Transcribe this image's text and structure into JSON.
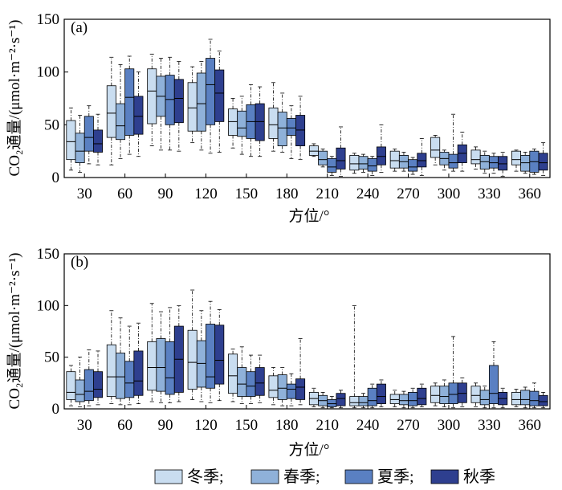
{
  "chart_data": [
    {
      "type": "boxplot",
      "panel_label": "(a)",
      "xlabel": "方位/°",
      "ylabel": "CO₂通量/(μmol·m⁻²·s⁻¹)",
      "ylim": [
        0,
        150
      ],
      "yticks": [
        0,
        50,
        100,
        150
      ],
      "categories": [
        "30",
        "60",
        "90",
        "120",
        "150",
        "180",
        "210",
        "240",
        "270",
        "300",
        "330",
        "360"
      ],
      "series": [
        {
          "name": "冬季",
          "color": "#c9ddf0",
          "boxes": [
            {
              "min": 7,
              "q1": 17,
              "median": 34,
              "q3": 54,
              "max": 66
            },
            {
              "min": 12,
              "q1": 38,
              "median": 61,
              "q3": 87,
              "max": 114
            },
            {
              "min": 30,
              "q1": 51,
              "median": 82,
              "q3": 103,
              "max": 117
            },
            {
              "min": 33,
              "q1": 44,
              "median": 66,
              "q3": 90,
              "max": 105
            },
            {
              "min": 28,
              "q1": 40,
              "median": 53,
              "q3": 65,
              "max": 75
            },
            {
              "min": 25,
              "q1": 37,
              "median": 50,
              "q3": 66,
              "max": 90
            },
            {
              "min": 20,
              "q1": 21,
              "median": 25,
              "q3": 30,
              "max": 32
            },
            {
              "min": 4,
              "q1": 7,
              "median": 13,
              "q3": 21,
              "max": 23
            },
            {
              "min": 6,
              "q1": 9,
              "median": 16,
              "q3": 25,
              "max": 27
            },
            {
              "min": 12,
              "q1": 19,
              "median": 26,
              "q3": 38,
              "max": 40
            },
            {
              "min": 8,
              "q1": 13,
              "median": 17,
              "q3": 26,
              "max": 29
            },
            {
              "min": 6,
              "q1": 12,
              "median": 17,
              "q3": 25,
              "max": 26
            }
          ]
        },
        {
          "name": "春季",
          "color": "#8fb1d9",
          "boxes": [
            {
              "min": 5,
              "q1": 14,
              "median": 25,
              "q3": 42,
              "max": 59
            },
            {
              "min": 18,
              "q1": 36,
              "median": 49,
              "q3": 70,
              "max": 107
            },
            {
              "min": 26,
              "q1": 58,
              "median": 77,
              "q3": 96,
              "max": 113
            },
            {
              "min": 26,
              "q1": 44,
              "median": 70,
              "q3": 99,
              "max": 110
            },
            {
              "min": 22,
              "q1": 39,
              "median": 47,
              "q3": 63,
              "max": 77
            },
            {
              "min": 24,
              "q1": 30,
              "median": 47,
              "q3": 62,
              "max": 80
            },
            {
              "min": 10,
              "q1": 12,
              "median": 17,
              "q3": 25,
              "max": 27
            },
            {
              "min": 5,
              "q1": 8,
              "median": 13,
              "q3": 20,
              "max": 22
            },
            {
              "min": 6,
              "q1": 9,
              "median": 15,
              "q3": 21,
              "max": 24
            },
            {
              "min": 7,
              "q1": 12,
              "median": 18,
              "q3": 24,
              "max": 26
            },
            {
              "min": 4,
              "q1": 8,
              "median": 15,
              "q3": 21,
              "max": 25
            },
            {
              "min": 4,
              "q1": 6,
              "median": 14,
              "q3": 21,
              "max": 24
            }
          ]
        },
        {
          "name": "夏季",
          "color": "#5a80c2",
          "boxes": [
            {
              "min": 13,
              "q1": 25,
              "median": 38,
              "q3": 58,
              "max": 68
            },
            {
              "min": 22,
              "q1": 40,
              "median": 76,
              "q3": 103,
              "max": 115
            },
            {
              "min": 26,
              "q1": 50,
              "median": 74,
              "q3": 97,
              "max": 114
            },
            {
              "min": 23,
              "q1": 50,
              "median": 88,
              "q3": 113,
              "max": 131
            },
            {
              "min": 20,
              "q1": 37,
              "median": 53,
              "q3": 69,
              "max": 88
            },
            {
              "min": 18,
              "q1": 40,
              "median": 47,
              "q3": 56,
              "max": 68
            },
            {
              "min": 2,
              "q1": 5,
              "median": 10,
              "q3": 18,
              "max": 20
            },
            {
              "min": 2,
              "q1": 6,
              "median": 11,
              "q3": 18,
              "max": 20
            },
            {
              "min": 3,
              "q1": 6,
              "median": 10,
              "q3": 17,
              "max": 19
            },
            {
              "min": 6,
              "q1": 9,
              "median": 14,
              "q3": 22,
              "max": 60
            },
            {
              "min": 4,
              "q1": 9,
              "median": 14,
              "q3": 20,
              "max": 23
            },
            {
              "min": 3,
              "q1": 5,
              "median": 15,
              "q3": 25,
              "max": 27
            }
          ]
        },
        {
          "name": "秋季",
          "color": "#2e3f8f",
          "boxes": [
            {
              "min": 12,
              "q1": 24,
              "median": 32,
              "q3": 45,
              "max": 60
            },
            {
              "min": 20,
              "q1": 41,
              "median": 58,
              "q3": 77,
              "max": 100
            },
            {
              "min": 25,
              "q1": 52,
              "median": 75,
              "q3": 93,
              "max": 110
            },
            {
              "min": 24,
              "q1": 53,
              "median": 80,
              "q3": 102,
              "max": 120
            },
            {
              "min": 20,
              "q1": 35,
              "median": 53,
              "q3": 70,
              "max": 86
            },
            {
              "min": 17,
              "q1": 30,
              "median": 45,
              "q3": 59,
              "max": 77
            },
            {
              "min": 1,
              "q1": 8,
              "median": 16,
              "q3": 28,
              "max": 48
            },
            {
              "min": 5,
              "q1": 12,
              "median": 20,
              "q3": 29,
              "max": 50
            },
            {
              "min": 2,
              "q1": 10,
              "median": 16,
              "q3": 23,
              "max": 37
            },
            {
              "min": 6,
              "q1": 14,
              "median": 23,
              "q3": 31,
              "max": 43
            },
            {
              "min": 1,
              "q1": 7,
              "median": 13,
              "q3": 20,
              "max": 24
            },
            {
              "min": 2,
              "q1": 7,
              "median": 14,
              "q3": 23,
              "max": 33
            }
          ]
        }
      ]
    },
    {
      "type": "boxplot",
      "panel_label": "(b)",
      "xlabel": "方位/°",
      "ylabel": "CO₂通量/(μmol·m⁻²·s⁻¹)",
      "ylim": [
        0,
        150
      ],
      "yticks": [
        0,
        50,
        100,
        150
      ],
      "categories": [
        "30",
        "60",
        "90",
        "120",
        "150",
        "180",
        "210",
        "240",
        "270",
        "300",
        "330",
        "360"
      ],
      "series": [
        {
          "name": "冬季",
          "color": "#c9ddf0",
          "boxes": [
            {
              "min": 3,
              "q1": 9,
              "median": 16,
              "q3": 36,
              "max": 42
            },
            {
              "min": 5,
              "q1": 12,
              "median": 31,
              "q3": 62,
              "max": 95
            },
            {
              "min": 7,
              "q1": 18,
              "median": 40,
              "q3": 65,
              "max": 102
            },
            {
              "min": 9,
              "q1": 19,
              "median": 45,
              "q3": 76,
              "max": 115
            },
            {
              "min": 7,
              "q1": 15,
              "median": 32,
              "q3": 53,
              "max": 58
            },
            {
              "min": 4,
              "q1": 11,
              "median": 18,
              "q3": 32,
              "max": 40
            },
            {
              "min": 2,
              "q1": 4,
              "median": 10,
              "q3": 16,
              "max": 20
            },
            {
              "min": 1,
              "q1": 3,
              "median": 6,
              "q3": 12,
              "max": 100
            },
            {
              "min": 2,
              "q1": 5,
              "median": 9,
              "q3": 14,
              "max": 18
            },
            {
              "min": 3,
              "q1": 6,
              "median": 13,
              "q3": 22,
              "max": 25
            },
            {
              "min": 2,
              "q1": 6,
              "median": 13,
              "q3": 22,
              "max": 25
            },
            {
              "min": 2,
              "q1": 4,
              "median": 9,
              "q3": 16,
              "max": 19
            }
          ]
        },
        {
          "name": "春季",
          "color": "#8fb1d9",
          "boxes": [
            {
              "min": 2,
              "q1": 7,
              "median": 14,
              "q3": 28,
              "max": 50
            },
            {
              "min": 4,
              "q1": 10,
              "median": 31,
              "q3": 54,
              "max": 88
            },
            {
              "min": 6,
              "q1": 17,
              "median": 40,
              "q3": 68,
              "max": 94
            },
            {
              "min": 7,
              "q1": 21,
              "median": 44,
              "q3": 66,
              "max": 95
            },
            {
              "min": 5,
              "q1": 12,
              "median": 24,
              "q3": 40,
              "max": 60
            },
            {
              "min": 3,
              "q1": 9,
              "median": 20,
              "q3": 33,
              "max": 40
            },
            {
              "min": 1,
              "q1": 3,
              "median": 8,
              "q3": 13,
              "max": 16
            },
            {
              "min": 1,
              "q1": 3,
              "median": 6,
              "q3": 12,
              "max": 15
            },
            {
              "min": 1,
              "q1": 4,
              "median": 8,
              "q3": 14,
              "max": 17
            },
            {
              "min": 2,
              "q1": 5,
              "median": 12,
              "q3": 22,
              "max": 28
            },
            {
              "min": 1,
              "q1": 4,
              "median": 9,
              "q3": 18,
              "max": 22
            },
            {
              "min": 1,
              "q1": 4,
              "median": 9,
              "q3": 18,
              "max": 21
            }
          ]
        },
        {
          "name": "夏季",
          "color": "#5a80c2",
          "boxes": [
            {
              "min": 3,
              "q1": 8,
              "median": 17,
              "q3": 38,
              "max": 57
            },
            {
              "min": 4,
              "q1": 11,
              "median": 25,
              "q3": 46,
              "max": 80
            },
            {
              "min": 6,
              "q1": 14,
              "median": 30,
              "q3": 65,
              "max": 98
            },
            {
              "min": 6,
              "q1": 20,
              "median": 31,
              "q3": 82,
              "max": 104
            },
            {
              "min": 5,
              "q1": 12,
              "median": 22,
              "q3": 36,
              "max": 52
            },
            {
              "min": 3,
              "q1": 10,
              "median": 19,
              "q3": 24,
              "max": 34
            },
            {
              "min": 1,
              "q1": 2,
              "median": 5,
              "q3": 9,
              "max": 12
            },
            {
              "min": 1,
              "q1": 3,
              "median": 8,
              "q3": 20,
              "max": 24
            },
            {
              "min": 1,
              "q1": 3,
              "median": 8,
              "q3": 16,
              "max": 20
            },
            {
              "min": 1,
              "q1": 5,
              "median": 14,
              "q3": 25,
              "max": 70
            },
            {
              "min": 1,
              "q1": 5,
              "median": 15,
              "q3": 42,
              "max": 65
            },
            {
              "min": 1,
              "q1": 3,
              "median": 8,
              "q3": 17,
              "max": 25
            }
          ]
        },
        {
          "name": "秋季",
          "color": "#2e3f8f",
          "boxes": [
            {
              "min": 4,
              "q1": 11,
              "median": 19,
              "q3": 36,
              "max": 56
            },
            {
              "min": 5,
              "q1": 13,
              "median": 27,
              "q3": 56,
              "max": 83
            },
            {
              "min": 7,
              "q1": 16,
              "median": 48,
              "q3": 80,
              "max": 100
            },
            {
              "min": 8,
              "q1": 24,
              "median": 47,
              "q3": 81,
              "max": 96
            },
            {
              "min": 6,
              "q1": 13,
              "median": 25,
              "q3": 40,
              "max": 52
            },
            {
              "min": 4,
              "q1": 9,
              "median": 21,
              "q3": 29,
              "max": 68
            },
            {
              "min": 1,
              "q1": 3,
              "median": 10,
              "q3": 15,
              "max": 18
            },
            {
              "min": 2,
              "q1": 5,
              "median": 12,
              "q3": 24,
              "max": 28
            },
            {
              "min": 2,
              "q1": 4,
              "median": 10,
              "q3": 20,
              "max": 24
            },
            {
              "min": 2,
              "q1": 6,
              "median": 15,
              "q3": 25,
              "max": 30
            },
            {
              "min": 1,
              "q1": 4,
              "median": 10,
              "q3": 16,
              "max": 20
            },
            {
              "min": 1,
              "q1": 3,
              "median": 7,
              "q3": 13,
              "max": 16
            }
          ]
        }
      ]
    }
  ],
  "legend": [
    {
      "label": "冬季;",
      "color": "#c9ddf0"
    },
    {
      "label": "春季;",
      "color": "#8fb1d9"
    },
    {
      "label": "夏季;",
      "color": "#5a80c2"
    },
    {
      "label": "秋季",
      "color": "#2e3f8f"
    }
  ]
}
